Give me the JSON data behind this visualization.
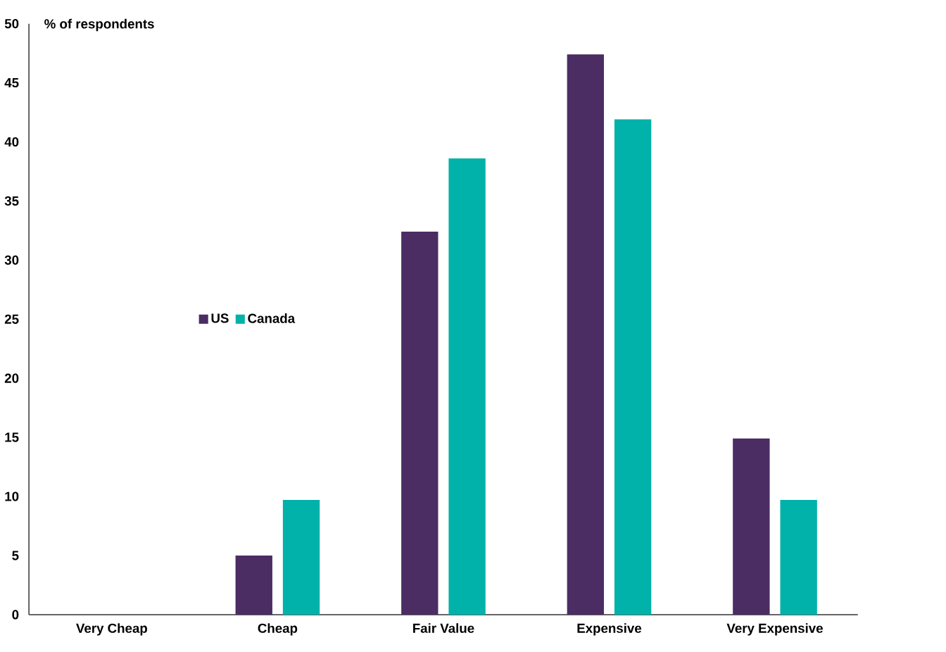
{
  "chart_data": {
    "type": "bar",
    "ylabel": "% of respondents",
    "categories": [
      "Very Cheap",
      "Cheap",
      "Fair Value",
      "Expensive",
      "Very Expensive"
    ],
    "series": [
      {
        "name": "US",
        "color": "#4b2c63",
        "values": [
          0,
          5,
          32.4,
          47.4,
          14.9
        ]
      },
      {
        "name": "Canada",
        "color": "#00b2a9",
        "values": [
          0,
          9.7,
          38.6,
          41.9,
          9.7
        ]
      }
    ],
    "ylim": [
      0,
      50
    ],
    "yticks": [
      0,
      5,
      10,
      15,
      20,
      25,
      30,
      35,
      40,
      45,
      50
    ],
    "grid": false,
    "legend": "left"
  }
}
